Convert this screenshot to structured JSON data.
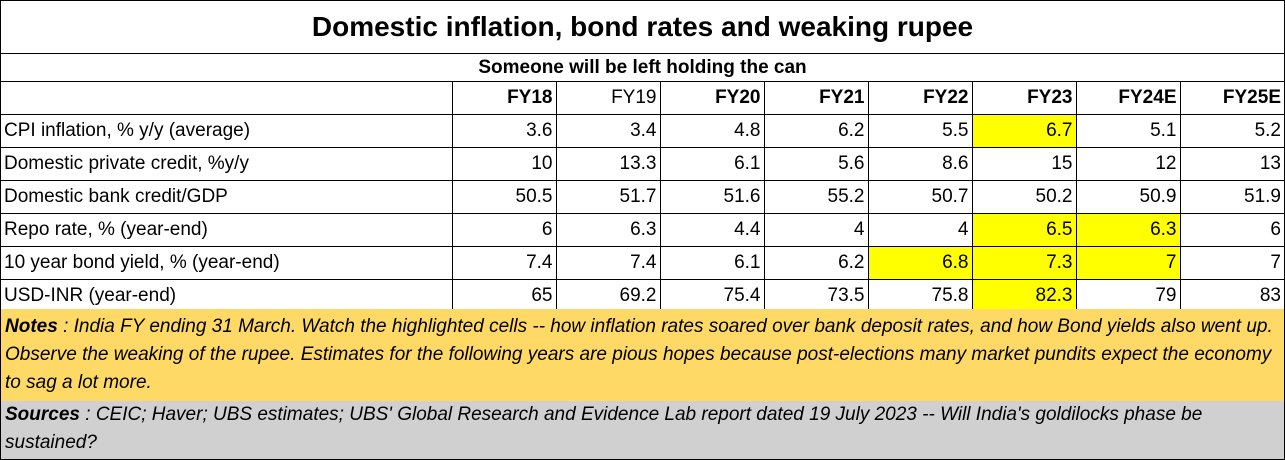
{
  "chart_data": {
    "type": "table",
    "title": "Domestic inflation, bond rates and weaking rupee",
    "subtitle": "Someone will be left holding the can",
    "columns": [
      "FY18",
      "FY19",
      "FY20",
      "FY21",
      "FY22",
      "FY23",
      "FY24E",
      "FY25E"
    ],
    "rows": [
      {
        "label": "CPI inflation, % y/y (average)",
        "values": [
          "3.6",
          "3.4",
          "4.8",
          "6.2",
          "5.5",
          "6.7",
          "5.1",
          "5.2"
        ],
        "highlight": [
          5
        ]
      },
      {
        "label": "Domestic private credit, %y/y",
        "values": [
          "10",
          "13.3",
          "6.1",
          "5.6",
          "8.6",
          "15",
          "12",
          "13"
        ],
        "highlight": []
      },
      {
        "label": "Domestic bank credit/GDP",
        "values": [
          "50.5",
          "51.7",
          "51.6",
          "55.2",
          "50.7",
          "50.2",
          "50.9",
          "51.9"
        ],
        "highlight": []
      },
      {
        "label": "Repo rate, % (year-end)",
        "values": [
          "6",
          "6.3",
          "4.4",
          "4",
          "4",
          "6.5",
          "6.3",
          "6"
        ],
        "highlight": [
          5,
          6
        ]
      },
      {
        "label": "10 year bond yield, % (year-end)",
        "values": [
          "7.4",
          "7.4",
          "6.1",
          "6.2",
          "6.8",
          "7.3",
          "7",
          "7"
        ],
        "highlight": [
          4,
          5,
          6
        ]
      },
      {
        "label": "USD-INR (year-end)",
        "values": [
          "65",
          "69.2",
          "75.4",
          "73.5",
          "75.8",
          "82.3",
          "79",
          "83"
        ],
        "highlight": [
          5
        ]
      }
    ],
    "highlight_color": "#ffff00"
  },
  "notes": {
    "lead": "Notes",
    "text": " : India FY ending 31 March.  Watch the highlighted cells -- how inflation rates soared over bank deposit rates, and how Bond yields also went up.  Observe the weaking of the rupee.  Estimates for the following years are pious hopes because post-elections many market pundits expect the economy to sag a lot more."
  },
  "sources": {
    "lead": "Sources",
    "text": " : CEIC; Haver; UBS estimates; UBS' Global Research and Evidence Lab report dated 19 July 2023 -- Will India's goldilocks phase be sustained?"
  },
  "colors": {
    "notes_bg": "#ffd966",
    "sources_bg": "#d0d0d0",
    "highlight": "#ffff00"
  }
}
